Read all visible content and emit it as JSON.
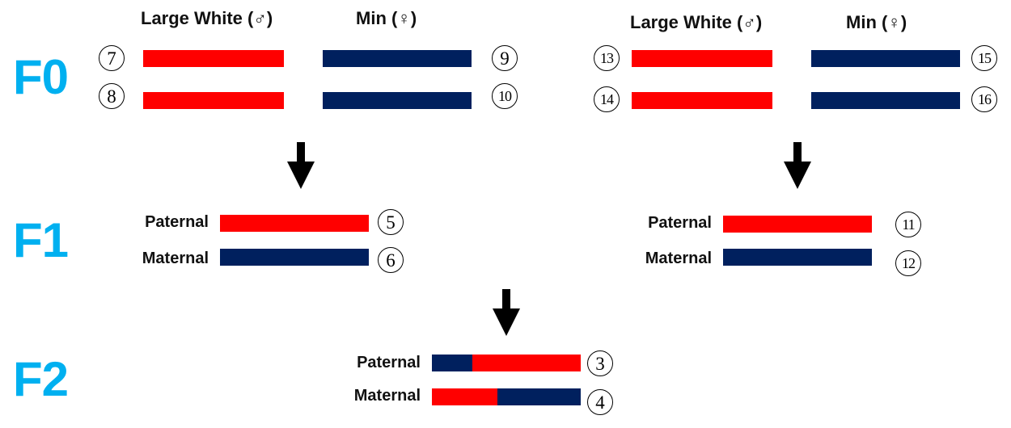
{
  "colors": {
    "red": "#ff0000",
    "navy": "#00205e",
    "accent": "#00b0f0"
  },
  "generations": {
    "f0": "F0",
    "f1": "F1",
    "f2": "F2"
  },
  "f0": {
    "left": {
      "sire_label": "Large White (♂)",
      "dam_label": "Min (♀)",
      "sire_ids": [
        "7",
        "8"
      ],
      "dam_ids": [
        "9",
        "10"
      ]
    },
    "right": {
      "sire_label": "Large White (♂)",
      "dam_label": "Min (♀)",
      "sire_ids": [
        "13",
        "14"
      ],
      "dam_ids": [
        "15",
        "16"
      ]
    }
  },
  "f1": {
    "left": {
      "paternal_label": "Paternal",
      "maternal_label": "Maternal",
      "paternal_id": "5",
      "maternal_id": "6"
    },
    "right": {
      "paternal_label": "Paternal",
      "maternal_label": "Maternal",
      "paternal_id": "11",
      "maternal_id": "12"
    }
  },
  "f2": {
    "paternal_label": "Paternal",
    "maternal_label": "Maternal",
    "paternal_id": "3",
    "maternal_id": "4",
    "paternal_segments": [
      {
        "color": "navy",
        "fraction": 0.27
      },
      {
        "color": "red",
        "fraction": 0.73
      }
    ],
    "maternal_segments": [
      {
        "color": "red",
        "fraction": 0.44
      },
      {
        "color": "navy",
        "fraction": 0.56
      }
    ]
  }
}
